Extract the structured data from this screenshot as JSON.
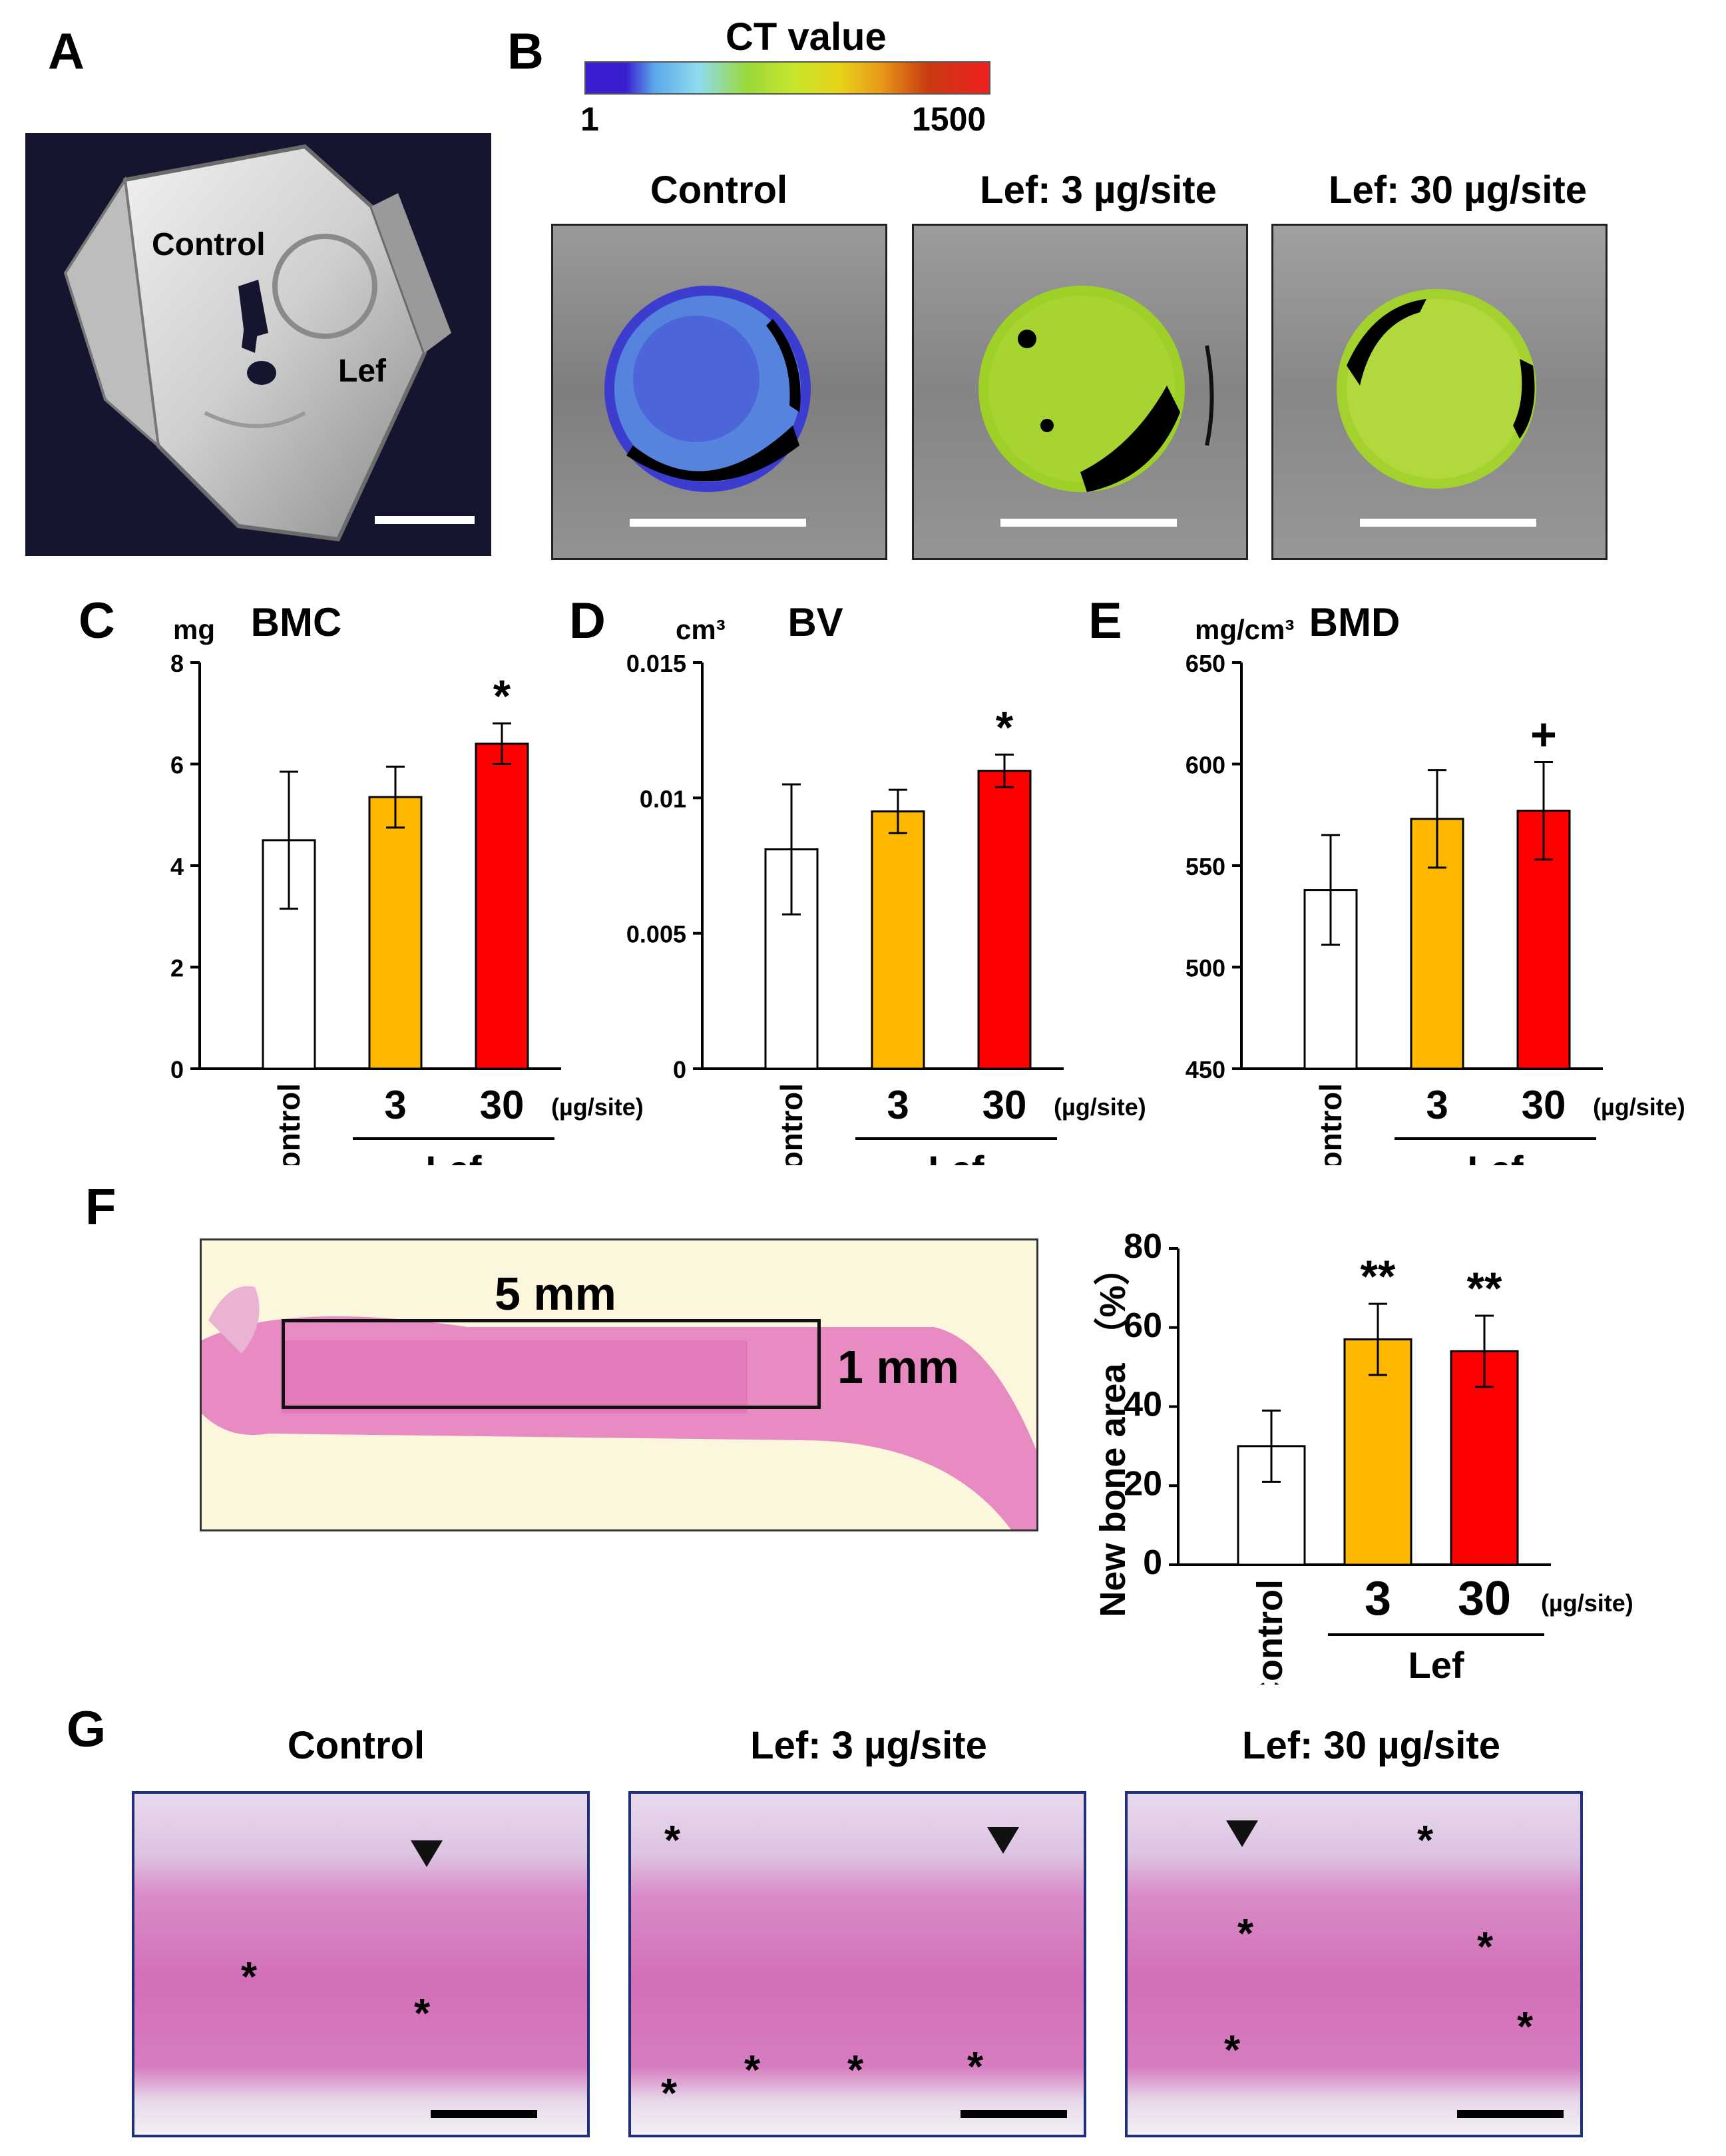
{
  "panel_labels": {
    "A": "A",
    "B": "B",
    "C": "C",
    "D": "D",
    "E": "E",
    "F": "F",
    "G": "G"
  },
  "panel_a": {
    "label_control": "Control",
    "label_lef": "Lef"
  },
  "panel_b": {
    "colorbar_title": "CT value",
    "colorbar_min": "1",
    "colorbar_max": "1500",
    "colorbar_colors": [
      "#3a1fd0",
      "#5aa8e8",
      "#8fdcf0",
      "#9ad93a",
      "#c8e62a",
      "#e8d21a",
      "#e89a18",
      "#c83a10",
      "#f02020"
    ],
    "titles": [
      "Control",
      "Lef: 3 µg/site",
      "Lef: 30 µg/site"
    ]
  },
  "panel_f_image": {
    "label_width": "5 mm",
    "label_height": "1 mm"
  },
  "panel_g": {
    "titles": [
      "Control",
      "Lef: 3 µg/site",
      "Lef: 30 µg/site"
    ]
  },
  "colors": {
    "control": "#ffffff",
    "lef3": "#ffb800",
    "lef30": "#ff0000"
  },
  "chart_data": [
    {
      "type": "bar",
      "title": "BMC",
      "ylabel": "mg",
      "ylim": [
        0,
        8
      ],
      "yticks": [
        "0",
        "2",
        "4",
        "6",
        "8"
      ],
      "categories": [
        "Control",
        "3",
        "30"
      ],
      "values": [
        4.5,
        5.35,
        6.4
      ],
      "errors": [
        1.35,
        0.6,
        0.4
      ],
      "significance": [
        "",
        "",
        "*"
      ],
      "unit_label": "(µg/site)",
      "group_label": "Lef"
    },
    {
      "type": "bar",
      "title": "BV",
      "ylabel": "cm³",
      "ylim": [
        0,
        0.015
      ],
      "yticks": [
        "0",
        "0.005",
        "0.01",
        "0.015"
      ],
      "categories": [
        "Control",
        "3",
        "30"
      ],
      "values": [
        0.0081,
        0.0095,
        0.011
      ],
      "errors": [
        0.0024,
        0.0008,
        0.0006
      ],
      "significance": [
        "",
        "",
        "*"
      ],
      "unit_label": "(µg/site)",
      "group_label": "Lef"
    },
    {
      "type": "bar",
      "title": "BMD",
      "ylabel": "mg/cm³",
      "ylim": [
        450,
        650
      ],
      "yticks": [
        "450",
        "500",
        "550",
        "600",
        "650"
      ],
      "categories": [
        "Control",
        "3",
        "30"
      ],
      "values": [
        538,
        573,
        577
      ],
      "errors": [
        27,
        24,
        24
      ],
      "significance": [
        "",
        "",
        "+"
      ],
      "unit_label": "(µg/site)",
      "group_label": "Lef"
    },
    {
      "type": "bar",
      "title": "",
      "ylabel": "New bone area （%）",
      "ylim": [
        0,
        80
      ],
      "yticks": [
        "0",
        "20",
        "40",
        "60",
        "80"
      ],
      "categories": [
        "Control",
        "3",
        "30"
      ],
      "values": [
        30,
        57,
        54
      ],
      "errors": [
        9,
        9,
        9
      ],
      "significance": [
        "",
        "**",
        "**"
      ],
      "unit_label": "(µg/site)",
      "group_label": "Lef"
    }
  ]
}
